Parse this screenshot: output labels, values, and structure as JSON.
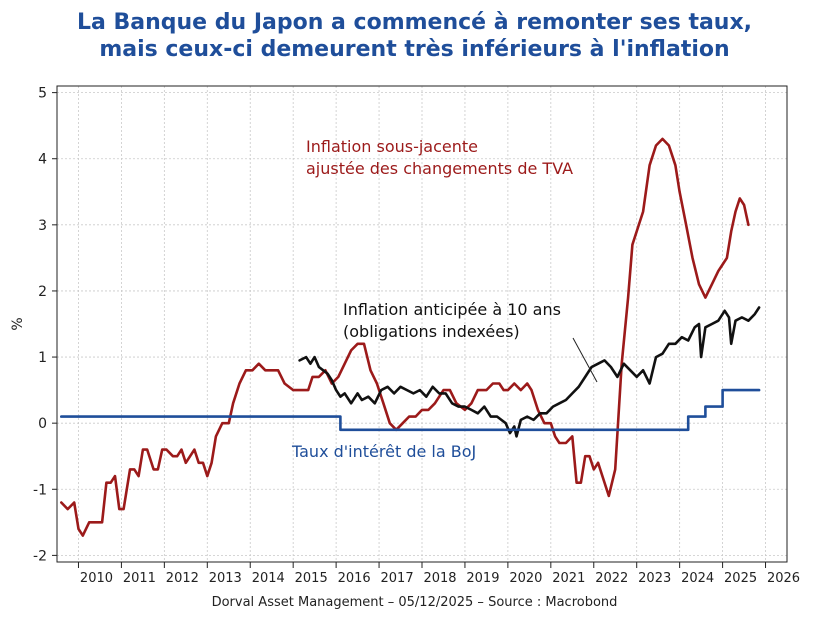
{
  "title": {
    "line1": "La Banque du Japon a commencé à remonter ses taux,",
    "line2": "mais ceux-ci demeurent très inférieurs à l'inflation"
  },
  "footer": {
    "text": "Dorval Asset Management – 05/12/2025 –   Source : Macrobond"
  },
  "chart_data": {
    "type": "line",
    "ylabel": "%",
    "xlabel": "",
    "xlim": [
      2009.5,
      2026.5
    ],
    "ylim": [
      -2.1,
      5.1
    ],
    "yticks": [
      -2,
      -1,
      0,
      1,
      2,
      3,
      4,
      5
    ],
    "xticks": [
      2010,
      2011,
      2012,
      2013,
      2014,
      2015,
      2016,
      2017,
      2018,
      2019,
      2020,
      2021,
      2022,
      2023,
      2024,
      2025,
      2026
    ],
    "grid": true,
    "annotations": [
      {
        "id": "core",
        "lines": [
          "Inflation sous-jacente",
          "ajustée des changements de TVA"
        ],
        "color": "#9c1a1a"
      },
      {
        "id": "breakeven",
        "lines": [
          "Inflation anticipée à 10 ans",
          "(obligations indexées)"
        ],
        "color": "#111111"
      },
      {
        "id": "boj",
        "lines": [
          "Taux d'intérêt de la BoJ"
        ],
        "color": "#1f4e9a"
      }
    ],
    "series": [
      {
        "name": "Inflation sous-jacente ajustée des changements de TVA",
        "color": "#9c1a1a",
        "x": [
          2009.6,
          2009.75,
          2009.9,
          2010.0,
          2010.1,
          2010.25,
          2010.4,
          2010.55,
          2010.65,
          2010.75,
          2010.85,
          2010.95,
          2011.05,
          2011.2,
          2011.3,
          2011.4,
          2011.5,
          2011.6,
          2011.75,
          2011.85,
          2011.95,
          2012.05,
          2012.2,
          2012.3,
          2012.4,
          2012.5,
          2012.6,
          2012.7,
          2012.8,
          2012.9,
          2013.0,
          2013.1,
          2013.2,
          2013.35,
          2013.5,
          2013.6,
          2013.75,
          2013.9,
          2014.05,
          2014.2,
          2014.35,
          2014.5,
          2014.65,
          2014.8,
          2015.0,
          2015.2,
          2015.35,
          2015.45,
          2015.6,
          2015.75,
          2015.9,
          2016.05,
          2016.2,
          2016.35,
          2016.5,
          2016.65,
          2016.8,
          2016.95,
          2017.1,
          2017.25,
          2017.4,
          2017.55,
          2017.7,
          2017.85,
          2018.0,
          2018.15,
          2018.3,
          2018.5,
          2018.65,
          2018.8,
          2019.0,
          2019.15,
          2019.3,
          2019.5,
          2019.65,
          2019.8,
          2019.9,
          2020.0,
          2020.15,
          2020.3,
          2020.45,
          2020.55,
          2020.7,
          2020.85,
          2021.0,
          2021.1,
          2021.2,
          2021.35,
          2021.5,
          2021.6,
          2021.7,
          2021.8,
          2021.9,
          2022.0,
          2022.1,
          2022.2,
          2022.35,
          2022.5,
          2022.65,
          2022.8,
          2022.9,
          2023.0,
          2023.15,
          2023.3,
          2023.45,
          2023.6,
          2023.75,
          2023.9,
          2024.0,
          2024.15,
          2024.3,
          2024.45,
          2024.6,
          2024.75,
          2024.9,
          2025.0,
          2025.1,
          2025.2,
          2025.3,
          2025.4,
          2025.5,
          2025.6
        ],
        "values": [
          -1.2,
          -1.3,
          -1.2,
          -1.6,
          -1.7,
          -1.5,
          -1.5,
          -1.5,
          -0.9,
          -0.9,
          -0.8,
          -1.3,
          -1.3,
          -0.7,
          -0.7,
          -0.8,
          -0.4,
          -0.4,
          -0.7,
          -0.7,
          -0.4,
          -0.4,
          -0.5,
          -0.5,
          -0.4,
          -0.6,
          -0.5,
          -0.4,
          -0.6,
          -0.6,
          -0.8,
          -0.6,
          -0.2,
          0.0,
          0.0,
          0.3,
          0.6,
          0.8,
          0.8,
          0.9,
          0.8,
          0.8,
          0.8,
          0.6,
          0.5,
          0.5,
          0.5,
          0.7,
          0.7,
          0.8,
          0.6,
          0.7,
          0.9,
          1.1,
          1.2,
          1.2,
          0.8,
          0.6,
          0.3,
          0.0,
          -0.1,
          0.0,
          0.1,
          0.1,
          0.2,
          0.2,
          0.3,
          0.5,
          0.5,
          0.3,
          0.2,
          0.3,
          0.5,
          0.5,
          0.6,
          0.6,
          0.5,
          0.5,
          0.6,
          0.5,
          0.6,
          0.5,
          0.2,
          0.0,
          0.0,
          -0.2,
          -0.3,
          -0.3,
          -0.2,
          -0.9,
          -0.9,
          -0.5,
          -0.5,
          -0.7,
          -0.6,
          -0.8,
          -1.1,
          -0.7,
          0.9,
          1.9,
          2.7,
          2.9,
          3.2,
          3.9,
          4.2,
          4.3,
          4.2,
          3.9,
          3.5,
          3.0,
          2.5,
          2.1,
          1.9,
          2.1,
          2.3,
          2.4,
          2.5,
          2.9,
          3.2,
          3.4,
          3.3,
          3.0
        ]
      },
      {
        "name": "Inflation anticipée à 10 ans (obligations indexées)",
        "color": "#111111",
        "x": [
          2015.15,
          2015.3,
          2015.4,
          2015.5,
          2015.6,
          2015.7,
          2015.8,
          2015.9,
          2016.0,
          2016.1,
          2016.2,
          2016.35,
          2016.5,
          2016.6,
          2016.75,
          2016.9,
          2017.05,
          2017.2,
          2017.35,
          2017.5,
          2017.65,
          2017.8,
          2017.95,
          2018.1,
          2018.25,
          2018.4,
          2018.55,
          2018.7,
          2018.85,
          2019.0,
          2019.15,
          2019.3,
          2019.45,
          2019.6,
          2019.75,
          2019.85,
          2019.95,
          2020.05,
          2020.15,
          2020.2,
          2020.3,
          2020.45,
          2020.6,
          2020.75,
          2020.9,
          2021.05,
          2021.2,
          2021.35,
          2021.5,
          2021.65,
          2021.8,
          2021.95,
          2022.1,
          2022.25,
          2022.4,
          2022.55,
          2022.7,
          2022.85,
          2023.0,
          2023.15,
          2023.3,
          2023.45,
          2023.6,
          2023.75,
          2023.9,
          2024.05,
          2024.2,
          2024.35,
          2024.45,
          2024.5,
          2024.6,
          2024.75,
          2024.9,
          2025.05,
          2025.15,
          2025.2,
          2025.3,
          2025.45,
          2025.6,
          2025.75,
          2025.85
        ],
        "values": [
          0.95,
          1.0,
          0.9,
          1.0,
          0.85,
          0.8,
          0.75,
          0.65,
          0.5,
          0.4,
          0.45,
          0.3,
          0.45,
          0.35,
          0.4,
          0.3,
          0.5,
          0.55,
          0.45,
          0.55,
          0.5,
          0.45,
          0.5,
          0.4,
          0.55,
          0.45,
          0.45,
          0.3,
          0.25,
          0.25,
          0.2,
          0.15,
          0.25,
          0.1,
          0.1,
          0.05,
          0.0,
          -0.15,
          -0.05,
          -0.2,
          0.05,
          0.1,
          0.05,
          0.15,
          0.15,
          0.25,
          0.3,
          0.35,
          0.45,
          0.55,
          0.7,
          0.85,
          0.9,
          0.95,
          0.85,
          0.7,
          0.9,
          0.8,
          0.7,
          0.8,
          0.6,
          1.0,
          1.05,
          1.2,
          1.2,
          1.3,
          1.25,
          1.45,
          1.5,
          1.0,
          1.45,
          1.5,
          1.55,
          1.7,
          1.6,
          1.2,
          1.55,
          1.6,
          1.55,
          1.65,
          1.75
        ]
      },
      {
        "name": "Taux d'intérêt de la BoJ",
        "color": "#1f4e9a",
        "x": [
          2009.6,
          2016.1,
          2016.1,
          2024.2,
          2024.2,
          2024.6,
          2024.6,
          2025.0,
          2025.0,
          2025.85
        ],
        "values": [
          0.1,
          0.1,
          -0.1,
          -0.1,
          0.1,
          0.1,
          0.25,
          0.25,
          0.5,
          0.5
        ]
      }
    ]
  }
}
